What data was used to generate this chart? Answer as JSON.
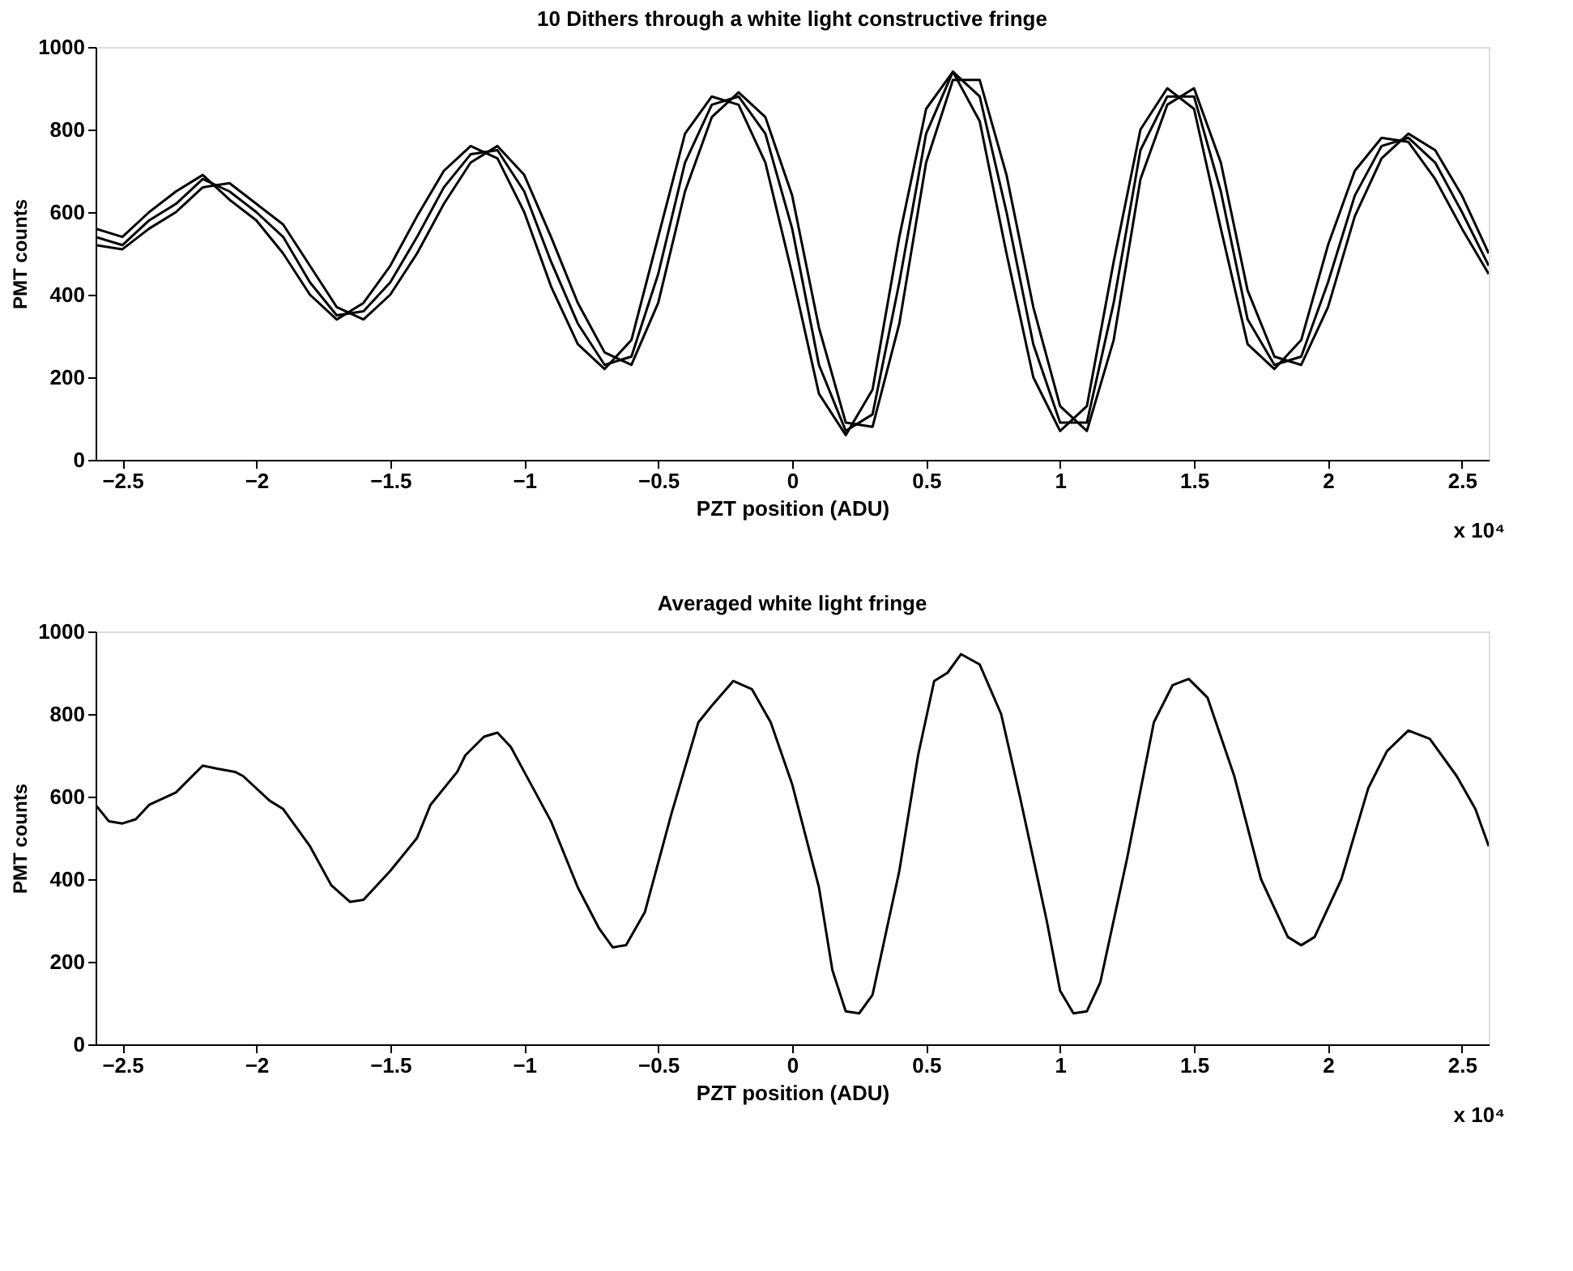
{
  "chart_data": [
    {
      "type": "line",
      "title": "10 Dithers through a white light constructive fringe",
      "xlabel": "PZT position (ADU)",
      "ylabel": "PMT counts",
      "annotations": [
        "x 10⁴"
      ],
      "x": [
        -2.6,
        -2.5,
        -2.4,
        -2.3,
        -2.2,
        -2.1,
        -2.0,
        -1.9,
        -1.8,
        -1.7,
        -1.6,
        -1.5,
        -1.4,
        -1.3,
        -1.2,
        -1.1,
        -1.0,
        -0.9,
        -0.8,
        -0.7,
        -0.6,
        -0.5,
        -0.4,
        -0.3,
        -0.2,
        -0.1,
        0,
        0.1,
        0.2,
        0.3,
        0.4,
        0.5,
        0.6,
        0.7,
        0.8,
        0.9,
        1.0,
        1.1,
        1.2,
        1.3,
        1.4,
        1.5,
        1.6,
        1.7,
        1.8,
        1.9,
        2.0,
        2.1,
        2.2,
        2.3,
        2.4,
        2.5,
        2.6
      ],
      "series": [
        {
          "color": "#000000",
          "values": [
            540,
            520,
            580,
            620,
            680,
            650,
            600,
            540,
            430,
            350,
            360,
            430,
            540,
            660,
            740,
            750,
            650,
            480,
            330,
            230,
            250,
            450,
            720,
            860,
            880,
            790,
            560,
            230,
            70,
            110,
            430,
            790,
            940,
            880,
            600,
            280,
            90,
            90,
            380,
            750,
            880,
            880,
            650,
            340,
            230,
            250,
            430,
            640,
            760,
            780,
            720,
            600,
            470
          ]
        },
        {
          "color": "#000000",
          "values": [
            560,
            540,
            600,
            650,
            690,
            630,
            580,
            500,
            400,
            340,
            380,
            470,
            590,
            700,
            760,
            730,
            600,
            420,
            280,
            220,
            290,
            540,
            790,
            880,
            860,
            720,
            450,
            160,
            60,
            170,
            540,
            850,
            940,
            820,
            500,
            200,
            70,
            130,
            480,
            800,
            900,
            850,
            560,
            280,
            220,
            290,
            520,
            700,
            780,
            770,
            680,
            560,
            450
          ]
        },
        {
          "color": "#000000",
          "values": [
            520,
            510,
            560,
            600,
            660,
            670,
            620,
            570,
            470,
            370,
            340,
            400,
            500,
            620,
            720,
            760,
            690,
            540,
            380,
            260,
            230,
            380,
            650,
            830,
            890,
            830,
            640,
            320,
            90,
            80,
            330,
            720,
            920,
            920,
            690,
            370,
            130,
            70,
            290,
            680,
            860,
            900,
            720,
            410,
            250,
            230,
            370,
            590,
            730,
            790,
            750,
            640,
            500
          ]
        }
      ],
      "xlim": [
        -2.6,
        2.6
      ],
      "xticks": [
        -2.5,
        -2,
        -1.5,
        -1,
        -0.5,
        0,
        0.5,
        1,
        1.5,
        2,
        2.5
      ],
      "ylim": [
        0,
        1000
      ],
      "yticks": [
        0,
        200,
        400,
        600,
        800,
        1000
      ],
      "grid": false
    },
    {
      "type": "line",
      "title": "Averaged white light fringe",
      "xlabel": "PZT position (ADU)",
      "ylabel": "PMT counts",
      "annotations": [
        "x 10⁴"
      ],
      "x": [
        -2.6,
        -2.55,
        -2.5,
        -2.45,
        -2.4,
        -2.3,
        -2.2,
        -2.15,
        -2.08,
        -2.05,
        -1.95,
        -1.9,
        -1.8,
        -1.72,
        -1.65,
        -1.6,
        -1.5,
        -1.4,
        -1.35,
        -1.25,
        -1.22,
        -1.15,
        -1.1,
        -1.05,
        -1.0,
        -0.9,
        -0.8,
        -0.72,
        -0.67,
        -0.62,
        -0.55,
        -0.45,
        -0.35,
        -0.3,
        -0.22,
        -0.15,
        -0.08,
        0,
        0.1,
        0.15,
        0.2,
        0.25,
        0.3,
        0.4,
        0.47,
        0.53,
        0.58,
        0.63,
        0.7,
        0.78,
        0.85,
        0.95,
        1.0,
        1.05,
        1.1,
        1.15,
        1.25,
        1.35,
        1.42,
        1.48,
        1.55,
        1.65,
        1.75,
        1.85,
        1.9,
        1.95,
        2.05,
        2.15,
        2.22,
        2.3,
        2.38,
        2.48,
        2.55,
        2.6
      ],
      "series": [
        {
          "color": "#000000",
          "values": [
            580,
            540,
            535,
            545,
            580,
            610,
            675,
            668,
            660,
            650,
            590,
            570,
            480,
            385,
            345,
            350,
            420,
            500,
            580,
            660,
            700,
            745,
            755,
            720,
            660,
            540,
            380,
            280,
            235,
            240,
            320,
            560,
            780,
            820,
            880,
            860,
            780,
            630,
            380,
            180,
            80,
            75,
            120,
            420,
            700,
            880,
            900,
            945,
            920,
            800,
            600,
            300,
            130,
            75,
            80,
            150,
            450,
            780,
            870,
            885,
            840,
            650,
            400,
            260,
            240,
            260,
            400,
            620,
            710,
            760,
            740,
            650,
            570,
            480
          ]
        }
      ],
      "xlim": [
        -2.6,
        2.6
      ],
      "xticks": [
        -2.5,
        -2,
        -1.5,
        -1,
        -0.5,
        0,
        0.5,
        1,
        1.5,
        2,
        2.5
      ],
      "ylim": [
        0,
        1000
      ],
      "yticks": [
        0,
        200,
        400,
        600,
        800,
        1000
      ],
      "grid": false
    }
  ]
}
